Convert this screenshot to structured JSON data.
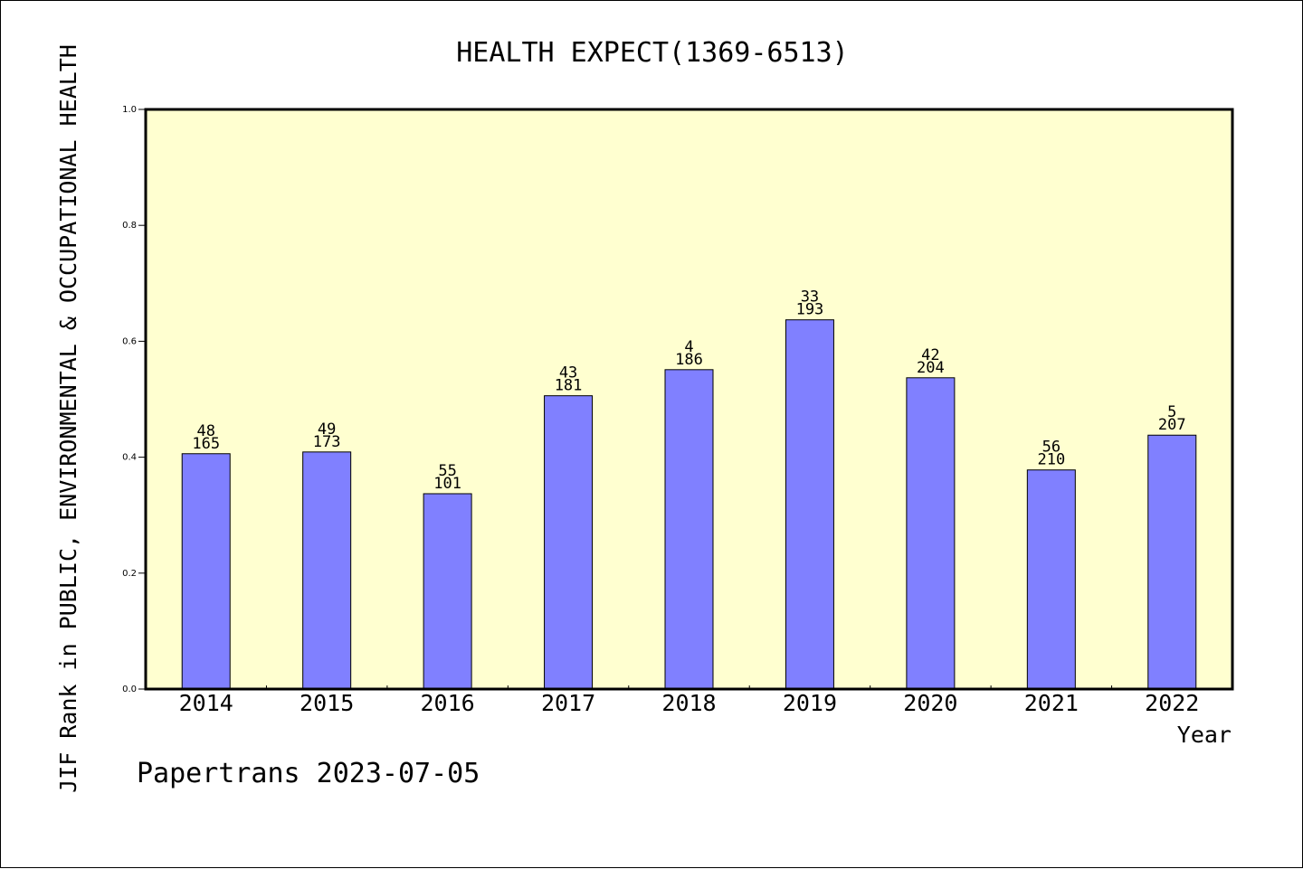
{
  "chart_data": {
    "type": "bar",
    "title": "HEALTH EXPECT(1369-6513)",
    "ylabel": "JIF Rank in PUBLIC, ENVIRONMENTAL & OCCUPATIONAL HEALTH",
    "xlabel": "Year",
    "ylim": [
      0.0,
      1.0
    ],
    "yticks": [
      "0.0",
      "0.2",
      "0.4",
      "0.6",
      "0.8",
      "1.0"
    ],
    "categories": [
      "2014",
      "2015",
      "2016",
      "2017",
      "2018",
      "2019",
      "2020",
      "2021",
      "2022"
    ],
    "values": [
      0.406,
      0.409,
      0.337,
      0.506,
      0.551,
      0.637,
      0.537,
      0.378,
      0.438
    ],
    "labels_top": [
      "48",
      "49",
      "55",
      "43",
      "4",
      "33",
      "42",
      "56",
      "5"
    ],
    "labels_bottom": [
      "165",
      "173",
      "101",
      "181",
      "186",
      "193",
      "204",
      "210",
      "207"
    ],
    "grid": false,
    "legend": "none",
    "colors": {
      "bar": "#8080ff",
      "plot_background": "#ffffd0",
      "axis": "#000000"
    }
  },
  "footer": {
    "credit": "Papertrans 2023-07-05"
  }
}
